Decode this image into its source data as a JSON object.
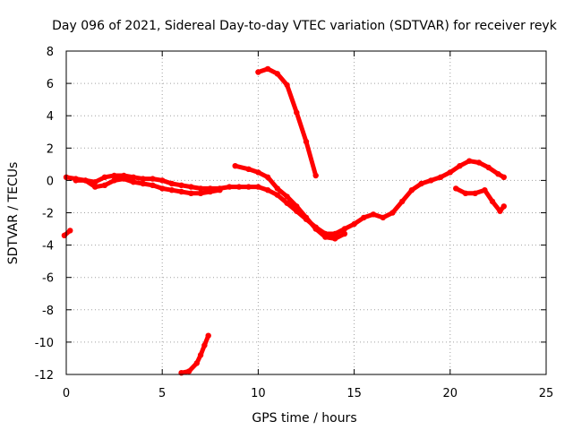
{
  "chart_data": {
    "type": "line",
    "title": "Day 096 of 2021, Sidereal Day-to-day VTEC variation (SDTVAR) for receiver reyk",
    "xlabel": "GPS time / hours",
    "ylabel": "SDTVAR / TECUs",
    "xlim": [
      0,
      25
    ],
    "ylim": [
      -12,
      8
    ],
    "xticks": [
      0,
      5,
      10,
      15,
      20,
      25
    ],
    "yticks": [
      -12,
      -10,
      -8,
      -6,
      -4,
      -2,
      0,
      2,
      4,
      6,
      8
    ],
    "grid": true,
    "color": "#ff0000",
    "series": [
      {
        "name": "main-trace-a",
        "x": [
          0.0,
          0.5,
          1.0,
          1.5,
          2.0,
          2.5,
          3.0,
          3.5,
          4.0,
          4.5,
          5.0,
          5.5,
          6.0,
          6.5,
          7.0,
          7.5,
          8.0,
          8.5,
          9.0,
          9.5,
          10.0,
          10.5,
          11.0,
          11.5,
          12.0,
          12.5,
          13.0,
          13.5,
          14.0,
          14.5,
          15.0,
          15.5,
          16.0,
          16.5,
          17.0,
          17.5,
          18.0,
          18.5,
          19.0,
          19.5,
          20.0,
          20.5,
          21.0,
          21.5,
          22.0,
          22.5,
          22.8
        ],
        "values": [
          0.2,
          0.1,
          0.0,
          -0.1,
          0.2,
          0.3,
          0.3,
          0.2,
          0.1,
          0.1,
          0.0,
          -0.2,
          -0.3,
          -0.4,
          -0.5,
          -0.5,
          -0.5,
          -0.4,
          -0.4,
          -0.4,
          -0.4,
          -0.6,
          -0.9,
          -1.4,
          -1.9,
          -2.4,
          -2.9,
          -3.3,
          -3.3,
          -3.0,
          -2.7,
          -2.3,
          -2.1,
          -2.3,
          -2.0,
          -1.3,
          -0.6,
          -0.2,
          0.0,
          0.2,
          0.5,
          0.9,
          1.2,
          1.1,
          0.8,
          0.4,
          0.2
        ]
      },
      {
        "name": "main-trace-b",
        "x": [
          0.5,
          1.0,
          1.5,
          2.0,
          2.5,
          3.0,
          3.5,
          4.0,
          4.5,
          5.0,
          5.5,
          6.0,
          6.5,
          7.0,
          7.5,
          8.0
        ],
        "values": [
          0.0,
          0.0,
          -0.4,
          -0.3,
          0.0,
          0.1,
          -0.1,
          -0.2,
          -0.3,
          -0.5,
          -0.6,
          -0.7,
          -0.8,
          -0.8,
          -0.7,
          -0.6
        ]
      },
      {
        "name": "noon-arc",
        "x": [
          8.8,
          9.5,
          10.0,
          10.5,
          11.0,
          11.5,
          12.0,
          12.5,
          13.0,
          13.5,
          14.0,
          14.5
        ],
        "values": [
          0.9,
          0.7,
          0.5,
          0.2,
          -0.5,
          -1.0,
          -1.6,
          -2.3,
          -3.0,
          -3.5,
          -3.6,
          -3.3
        ]
      },
      {
        "name": "falling-arc",
        "x": [
          10.0,
          10.5,
          11.0,
          11.5,
          12.0,
          12.5,
          13.0
        ],
        "values": [
          6.7,
          6.9,
          6.6,
          5.9,
          4.2,
          2.4,
          0.3
        ]
      },
      {
        "name": "late-arc",
        "x": [
          20.3,
          20.8,
          21.3,
          21.8,
          22.2,
          22.6,
          22.8
        ],
        "values": [
          -0.5,
          -0.8,
          -0.8,
          -0.6,
          -1.3,
          -1.9,
          -1.6
        ]
      },
      {
        "name": "rising-arc",
        "x": [
          6.0,
          6.4,
          6.8,
          7.0,
          7.2,
          7.4
        ],
        "values": [
          -11.9,
          -11.8,
          -11.3,
          -10.8,
          -10.2,
          -9.6
        ]
      },
      {
        "name": "start-fragment",
        "x": [
          -0.1,
          0.2
        ],
        "values": [
          -3.4,
          -3.1
        ]
      }
    ]
  }
}
